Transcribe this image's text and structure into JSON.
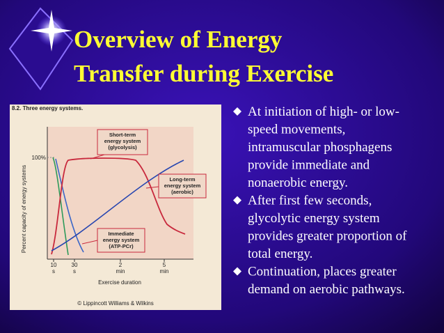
{
  "header": {
    "title_lines": [
      "Overview of Energy",
      "Transfer during Exercise"
    ]
  },
  "figure": {
    "caption": "8.2. Three energy systems.",
    "y_axis_label": "Percent capacity of energy systems",
    "y_tick": "100%",
    "x_ticks": [
      [
        "10",
        "s"
      ],
      [
        "30",
        "s"
      ],
      [
        "2",
        "min"
      ],
      [
        "5",
        "min"
      ]
    ],
    "x_axis_label": "Exercise duration",
    "callouts": [
      {
        "lines": [
          "Short-term",
          "energy system",
          "(glycolysis)"
        ]
      },
      {
        "lines": [
          "Long-term",
          "energy system",
          "(aerobic)"
        ]
      },
      {
        "lines": [
          "Immediate",
          "energy system",
          "(ATP-PCr)"
        ]
      }
    ],
    "credit": "© Lippincott Williams & Wilkins"
  },
  "bullets": [
    {
      "lines": [
        "At initiation of high- or low-",
        "speed movements,",
        "intramuscular phosphagens",
        "provide immediate and",
        "nonaerobic energy."
      ]
    },
    {
      "lines": [
        "After first few seconds,",
        "glycolytic energy system",
        "provides greater proportion of",
        "total energy."
      ]
    },
    {
      "lines": [
        "Continuation, places greater",
        "demand on aerobic pathways."
      ]
    }
  ]
}
